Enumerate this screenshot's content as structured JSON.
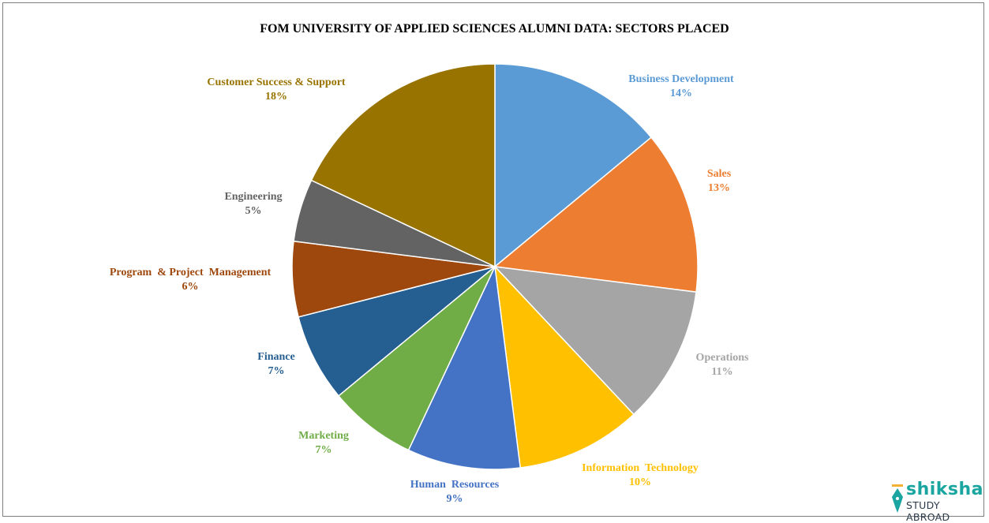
{
  "chart_data": {
    "type": "pie",
    "title": "FOM UNIVERSITY OF APPLIED SCIENCES ALUMNI DATA: SECTORS PLACED",
    "start_angle": "top",
    "direction": "clockwise",
    "unit": "%",
    "slices": [
      {
        "label": "Business Development",
        "value": 14,
        "color": "#5B9BD5"
      },
      {
        "label": "Sales",
        "value": 13,
        "color": "#ED7D31"
      },
      {
        "label": "Operations",
        "value": 11,
        "color": "#A5A5A5"
      },
      {
        "label": "Information  Technology",
        "value": 10,
        "color": "#FFC000"
      },
      {
        "label": "Human  Resources",
        "value": 9,
        "color": "#4472C4"
      },
      {
        "label": "Marketing",
        "value": 7,
        "color": "#70AD47"
      },
      {
        "label": "Finance",
        "value": 7,
        "color": "#255E91"
      },
      {
        "label": "Program  & Project  Management",
        "value": 6,
        "color": "#9E480E"
      },
      {
        "label": "Engineering",
        "value": 5,
        "color": "#636363"
      },
      {
        "label": "Customer Success & Support",
        "value": 18,
        "color": "#997300"
      }
    ]
  },
  "logo": {
    "brand": "shiksha",
    "tagline": "STUDY ABROAD"
  }
}
